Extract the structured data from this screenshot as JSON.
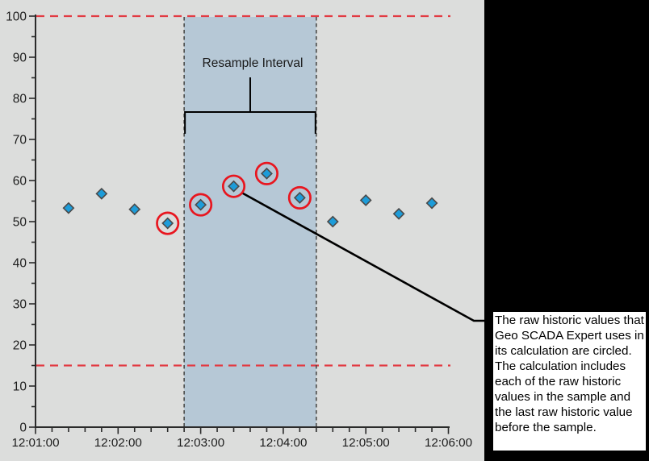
{
  "colors": {
    "page_background": "#000000",
    "plot_background": "#dcdddc",
    "resample_region_fill": "#b6c8d6",
    "region_boundary_dash": "#4a4a4a",
    "limit_line_red": "#e23b43",
    "circle_red": "#e8161f",
    "point_fill": "#1d9cd9",
    "point_stroke": "#4a4a4a",
    "axis": "#2b2b2b",
    "tick_label": "#1c1c1c",
    "annotation_line": "#000000",
    "note_background": "#ffffff"
  },
  "chart_data": {
    "type": "scatter",
    "title": "",
    "xlabel": "",
    "ylabel": "",
    "x_axis": {
      "tick_labels": [
        "12:01:00",
        "12:02:00",
        "12:03:00",
        "12:04:00",
        "12:05:00",
        "12:06:00"
      ],
      "minor_tick_seconds": 12
    },
    "y_axis": {
      "min": 0,
      "max": 100,
      "major_tick": 10,
      "minor_tick": 5,
      "tick_labels": [
        "100",
        "90",
        "80",
        "70",
        "60",
        "50",
        "40",
        "30",
        "20",
        "10",
        "0"
      ]
    },
    "points": [
      {
        "time": "12:01:24",
        "value": 53.3,
        "circled": false
      },
      {
        "time": "12:01:48",
        "value": 56.8,
        "circled": false
      },
      {
        "time": "12:02:12",
        "value": 53.0,
        "circled": false
      },
      {
        "time": "12:02:36",
        "value": 49.6,
        "circled": true
      },
      {
        "time": "12:03:00",
        "value": 54.1,
        "circled": true
      },
      {
        "time": "12:03:24",
        "value": 58.6,
        "circled": true
      },
      {
        "time": "12:03:48",
        "value": 61.7,
        "circled": true
      },
      {
        "time": "12:04:12",
        "value": 55.8,
        "circled": true
      },
      {
        "time": "12:04:36",
        "value": 50.0,
        "circled": false
      },
      {
        "time": "12:05:00",
        "value": 55.2,
        "circled": false
      },
      {
        "time": "12:05:24",
        "value": 51.9,
        "circled": false
      },
      {
        "time": "12:05:48",
        "value": 54.5,
        "circled": false
      }
    ],
    "limit_lines": [
      100,
      15
    ],
    "resample_interval": {
      "label": "Resample Interval",
      "start": "12:02:48",
      "end": "12:04:24"
    },
    "leader_from_time": "12:03:24",
    "legend": null,
    "grid": false
  },
  "annotation": {
    "text": "The raw historic values that Geo SCADA Expert uses in its calculation are circled. The calculation includes each of the raw historic values in the sample and the last raw historic value before the sample."
  }
}
